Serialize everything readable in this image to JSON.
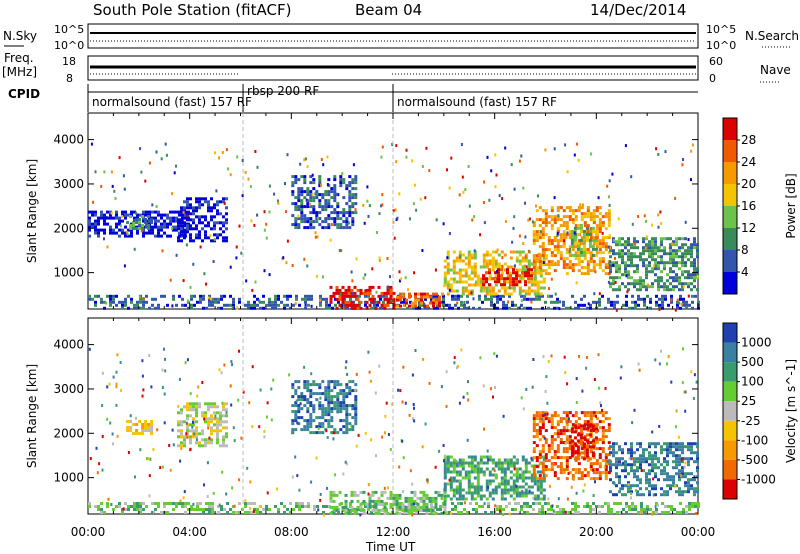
{
  "header": {
    "station": "South Pole Station (fitACF)",
    "beam": "Beam 04",
    "date": "14/Dec/2014"
  },
  "top_strip": {
    "nsky_label": "N.Sky",
    "nsearch_label": "N.Search",
    "freq_label": "Freq.",
    "freq_unit": "[MHz]",
    "nave_label": "Nave",
    "cpid_label": "CPID",
    "nsky_ticks": [
      "10^5",
      "10^0"
    ],
    "nsearch_ticks": [
      "10^5",
      "10^0"
    ],
    "freq_ticks": [
      "18",
      "8"
    ],
    "nave_ticks": [
      "60",
      "0"
    ]
  },
  "cpid_segments": [
    {
      "label": "normalsound (fast) 157 RF",
      "start_hour": 0,
      "end_hour": 6.1
    },
    {
      "label": "rbsp 200 RF",
      "start_hour": 6.1,
      "end_hour": 12.0
    },
    {
      "label": "normalsound (fast) 157 RF",
      "start_hour": 12.0,
      "end_hour": 24
    }
  ],
  "colors": {
    "power_scale": [
      "#0000dd",
      "#3355aa",
      "#3a8a5a",
      "#6cc24a",
      "#f5c400",
      "#f59a00",
      "#f05a00",
      "#dd0000"
    ],
    "velocity_scale": [
      "#2040b0",
      "#3a80a0",
      "#3a9a70",
      "#66cc33",
      "#bbbbbb",
      "#f5c400",
      "#f59a00",
      "#f06a00",
      "#dd0000"
    ]
  },
  "chart_data": [
    {
      "type": "heatmap",
      "title": "",
      "ylabel": "Slant Range [km]",
      "xlabel": "",
      "x_range_hours": [
        0,
        24
      ],
      "ylim": [
        180,
        4600
      ],
      "y_ticks": [
        1000,
        2000,
        3000,
        4000
      ],
      "colorbar": {
        "label": "Power [dB]",
        "range": [
          0,
          32
        ],
        "ticks": [
          4,
          8,
          12,
          16,
          20,
          24,
          28
        ]
      },
      "echo_regions": [
        {
          "t0": 0.0,
          "t1": 24.0,
          "r0": 200,
          "r1": 500,
          "level": 1
        },
        {
          "t0": 0.0,
          "t1": 4.0,
          "r0": 1800,
          "r1": 2400,
          "level": 0
        },
        {
          "t0": 1.5,
          "t1": 2.5,
          "r0": 2000,
          "r1": 2300,
          "level": 2
        },
        {
          "t0": 3.5,
          "t1": 5.5,
          "r0": 1700,
          "r1": 2700,
          "level": 0
        },
        {
          "t0": 8.0,
          "t1": 10.5,
          "r0": 2000,
          "r1": 3200,
          "level": 1
        },
        {
          "t0": 9.5,
          "t1": 12.0,
          "r0": 200,
          "r1": 700,
          "level": 7
        },
        {
          "t0": 12.0,
          "t1": 14.0,
          "r0": 250,
          "r1": 550,
          "level": 6
        },
        {
          "t0": 14.0,
          "t1": 18.0,
          "r0": 500,
          "r1": 1500,
          "level": 4
        },
        {
          "t0": 15.5,
          "t1": 17.5,
          "r0": 700,
          "r1": 1100,
          "level": 7
        },
        {
          "t0": 17.5,
          "t1": 20.5,
          "r0": 1000,
          "r1": 2500,
          "level": 5
        },
        {
          "t0": 19.0,
          "t1": 20.0,
          "r0": 1400,
          "r1": 2100,
          "level": 3
        },
        {
          "t0": 20.5,
          "t1": 24.0,
          "r0": 600,
          "r1": 1800,
          "level": 2
        }
      ]
    },
    {
      "type": "heatmap",
      "title": "",
      "ylabel": "Slant Range [km]",
      "xlabel": "Time UT",
      "x_range_hours": [
        0,
        24
      ],
      "x_ticks": [
        "00:00",
        "04:00",
        "08:00",
        "12:00",
        "16:00",
        "20:00",
        "00:00"
      ],
      "ylim": [
        180,
        4600
      ],
      "y_ticks": [
        1000,
        2000,
        3000,
        4000
      ],
      "colorbar": {
        "label": "Velocity [m s^-1]",
        "ticks": [
          "1000",
          "500",
          "100",
          "25",
          "-25",
          "-100",
          "-500",
          "-1000"
        ]
      },
      "echo_regions": [
        {
          "t0": 0.0,
          "t1": 24.0,
          "r0": 200,
          "r1": 450,
          "level": 3
        },
        {
          "t0": 1.5,
          "t1": 2.5,
          "r0": 2000,
          "r1": 2300,
          "level": 5
        },
        {
          "t0": 3.5,
          "t1": 5.5,
          "r0": 1700,
          "r1": 2700,
          "level": 4
        },
        {
          "t0": 8.0,
          "t1": 10.5,
          "r0": 2000,
          "r1": 3200,
          "level": 1
        },
        {
          "t0": 9.5,
          "t1": 14.0,
          "r0": 200,
          "r1": 700,
          "level": 3
        },
        {
          "t0": 14.0,
          "t1": 18.0,
          "r0": 500,
          "r1": 1500,
          "level": 2
        },
        {
          "t0": 17.5,
          "t1": 20.5,
          "r0": 1000,
          "r1": 2500,
          "level": 7
        },
        {
          "t0": 19.0,
          "t1": 20.0,
          "r0": 1400,
          "r1": 2200,
          "level": 8
        },
        {
          "t0": 20.5,
          "t1": 24.0,
          "r0": 600,
          "r1": 1800,
          "level": 1
        }
      ]
    }
  ]
}
